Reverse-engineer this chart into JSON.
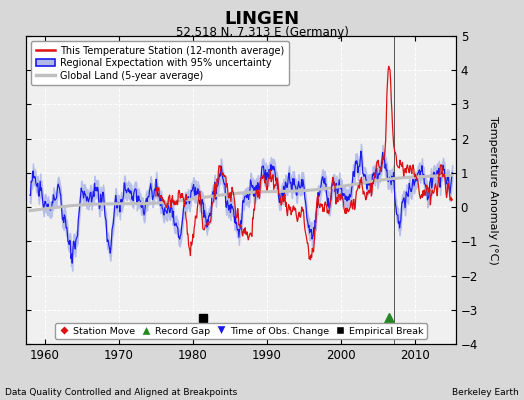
{
  "title": "LINGEN",
  "subtitle": "52.518 N, 7.313 E (Germany)",
  "ylabel": "Temperature Anomaly (°C)",
  "xlabel_bottom_left": "Data Quality Controlled and Aligned at Breakpoints",
  "xlabel_bottom_right": "Berkeley Earth",
  "ylim": [
    -4,
    5
  ],
  "xlim": [
    1957.5,
    2015.5
  ],
  "xticks": [
    1960,
    1970,
    1980,
    1990,
    2000,
    2010
  ],
  "yticks": [
    -4,
    -3,
    -2,
    -1,
    0,
    1,
    2,
    3,
    4,
    5
  ],
  "background_color": "#d8d8d8",
  "plot_background": "#f0f0f0",
  "grid_color": "#ffffff",
  "legend_labels": [
    "This Temperature Station (12-month average)",
    "Regional Expectation with 95% uncertainty",
    "Global Land (5-year average)"
  ],
  "marker_legend": [
    "Station Move",
    "Record Gap",
    "Time of Obs. Change",
    "Empirical Break"
  ],
  "empirical_break_x": 1981.3,
  "empirical_break_y": -3.25,
  "record_gap_x": 2006.5,
  "record_gap_y": -3.25,
  "vertical_line_x": 2007.2
}
